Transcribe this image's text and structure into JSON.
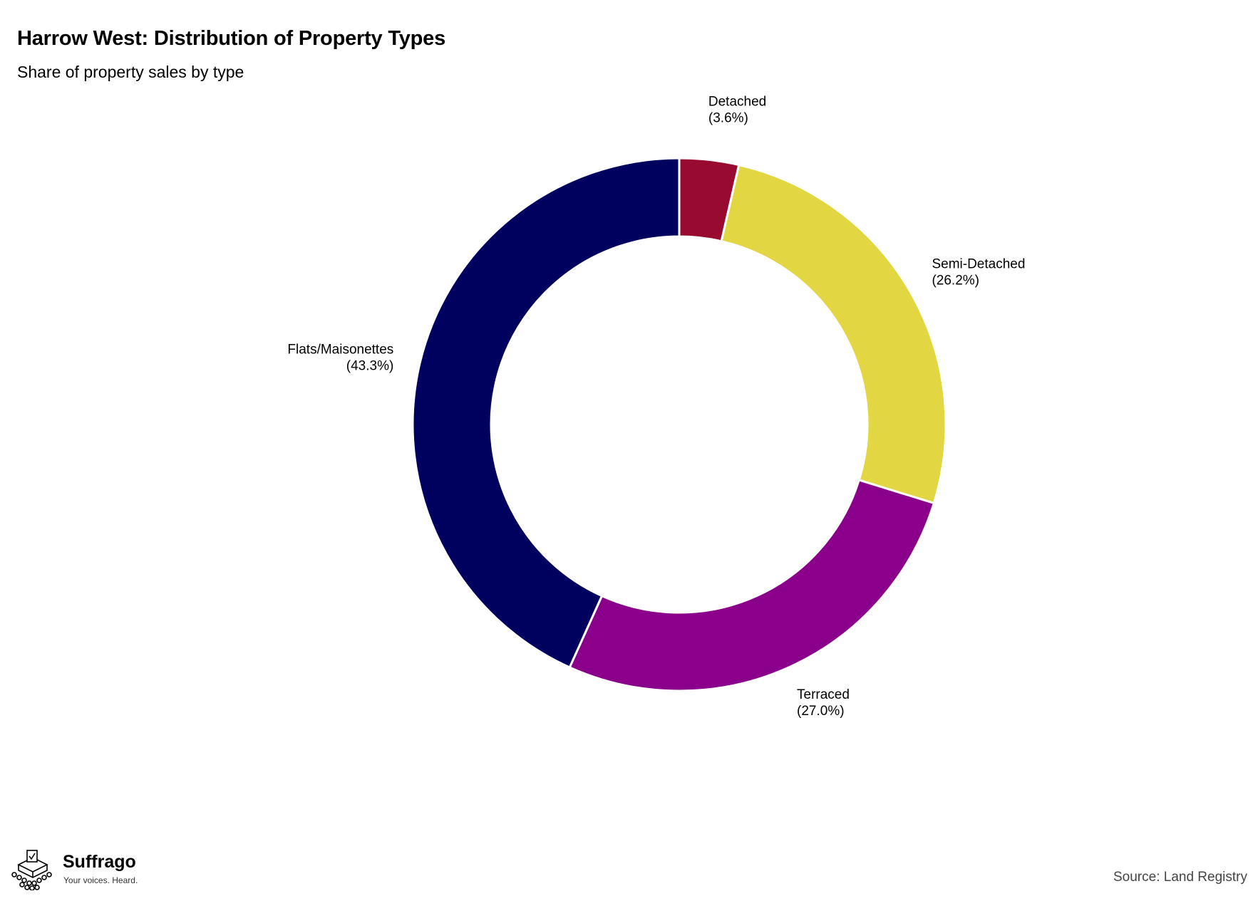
{
  "brand": {
    "name": "Suffrago",
    "tagline": "Your voices. Heard.",
    "logo_icon": "ballot-box-crowd-icon"
  },
  "source": "Source: Land Registry",
  "chart_data": {
    "type": "pie",
    "variant": "donut",
    "title": "Harrow West: Distribution of Property Types",
    "subtitle": "Share of property sales by type",
    "start_angle": "12 o'clock",
    "direction": "clockwise",
    "slices": [
      {
        "label": "Detached",
        "value": 3.6,
        "display": "(3.6%)",
        "color": "#990a30"
      },
      {
        "label": "Semi-Detached",
        "value": 26.2,
        "display": "(26.2%)",
        "color": "#e3d643"
      },
      {
        "label": "Terraced",
        "value": 27.0,
        "display": "(27.0%)",
        "color": "#8b008b"
      },
      {
        "label": "Flats/Maisonettes",
        "value": 43.3,
        "display": "(43.3%)",
        "color": "#00005e"
      }
    ]
  }
}
